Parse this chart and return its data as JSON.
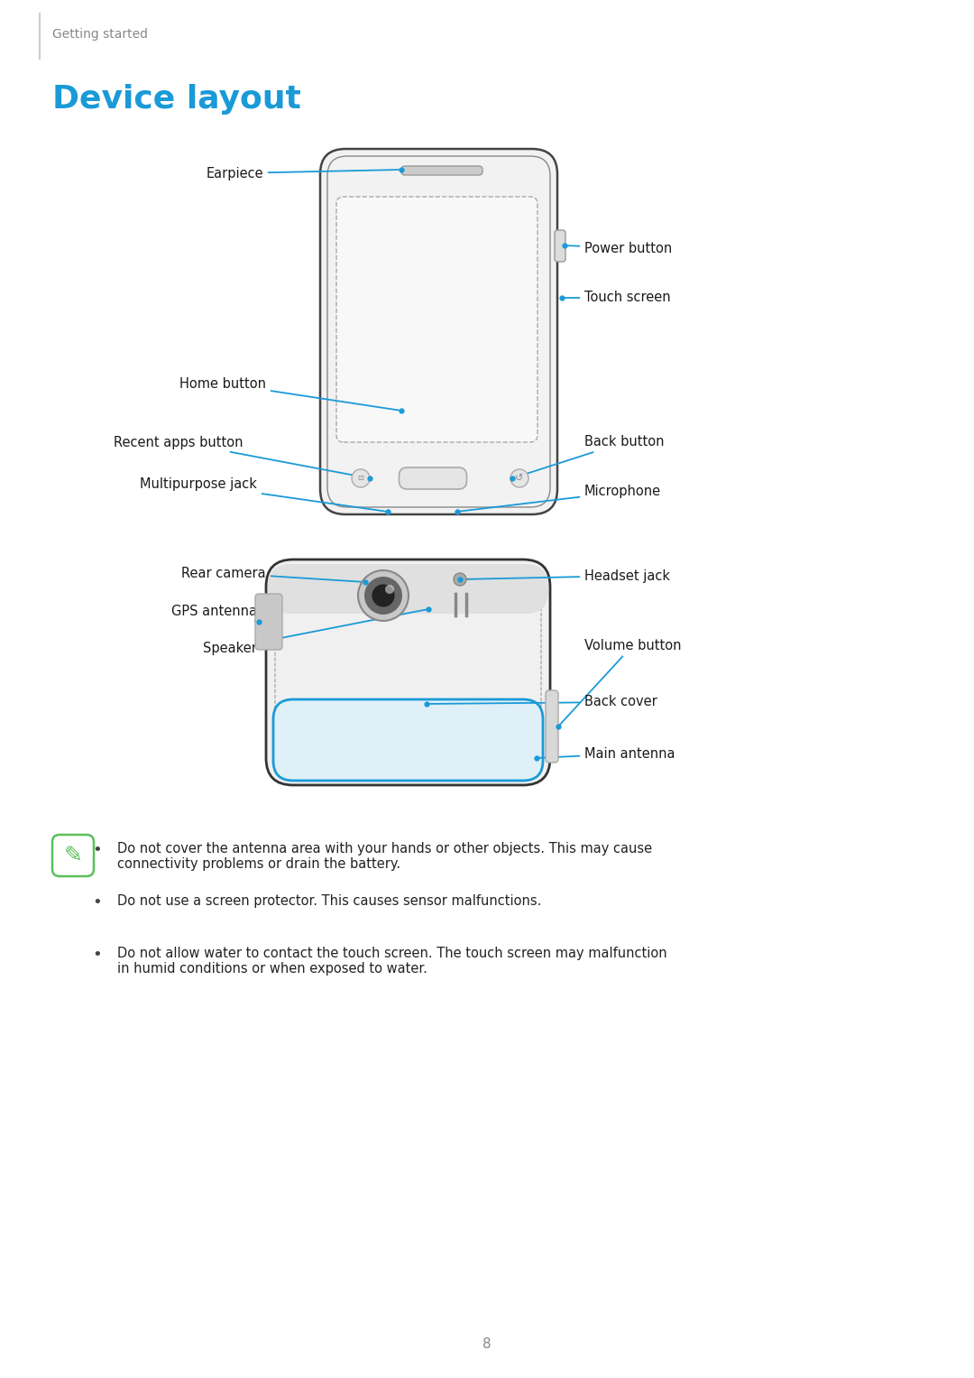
{
  "page_width": 10.8,
  "page_height": 15.27,
  "bg_color": "#ffffff",
  "section_label": "Getting started",
  "title": "Device layout",
  "title_color": "#1a9ad7",
  "title_fontsize": 26,
  "section_color": "#888888",
  "section_fontsize": 10,
  "label_color": "#1a1a1a",
  "label_fontsize": 10.5,
  "line_color": "#1a9ad7",
  "line_width": 1.3,
  "dot_color": "#1a9ad7",
  "note_color": "#222222",
  "note_fontsize": 10.5,
  "page_num": "8",
  "notes": [
    "Do not cover the antenna area with your hands or other objects. This may cause\nconnectivity problems or drain the battery.",
    "Do not use a screen protector. This causes sensor malfunctions.",
    "Do not allow water to contact the touch screen. The touch screen may malfunction\nin humid conditions or when exposed to water."
  ]
}
